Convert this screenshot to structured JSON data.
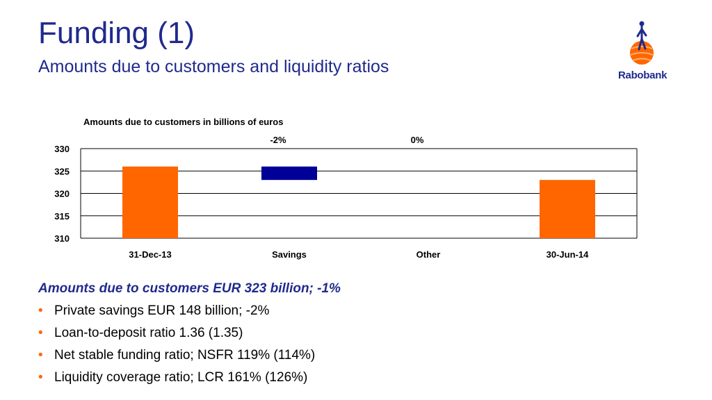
{
  "header": {
    "title": "Funding (1)",
    "subtitle": "Amounts due to customers and liquidity ratios"
  },
  "logo": {
    "text": "Rabobank",
    "icon": "rabobank-logo-icon"
  },
  "colors": {
    "title": "#1f2a8c",
    "total_bar": "#ff6600",
    "change_bar": "#000099",
    "bullet": "#ff6600"
  },
  "chart_data": {
    "type": "bar",
    "title": "Amounts due to customers in billions of euros",
    "categories": [
      "31-Dec-13",
      "Savings",
      "Other",
      "30-Jun-14"
    ],
    "bars": [
      {
        "category": "31-Dec-13",
        "kind": "total",
        "bottom": 310,
        "top": 326,
        "color": "#ff6600"
      },
      {
        "category": "Savings",
        "kind": "change",
        "bottom": 323,
        "top": 326,
        "color": "#000099"
      },
      {
        "category": "Other",
        "kind": "change",
        "bottom": 323,
        "top": 323,
        "color": "#000099"
      },
      {
        "category": "30-Jun-14",
        "kind": "total",
        "bottom": 310,
        "top": 323,
        "color": "#ff6600"
      }
    ],
    "annotations": [
      {
        "category": "Savings",
        "text": "-2%"
      },
      {
        "category": "Other",
        "text": "0%"
      }
    ],
    "yticks": [
      310,
      315,
      320,
      325,
      330
    ],
    "ylim": [
      310,
      330
    ],
    "grid": true,
    "xlabel": "",
    "ylabel": ""
  },
  "summary": "Amounts due to customers EUR 323 billion; -1%",
  "bullets": [
    "Private savings EUR 148 billion; -2%",
    "Loan-to-deposit ratio 1.36 (1.35)",
    "Net stable funding ratio; NSFR 119% (114%)",
    "Liquidity coverage ratio; LCR 161% (126%)"
  ]
}
